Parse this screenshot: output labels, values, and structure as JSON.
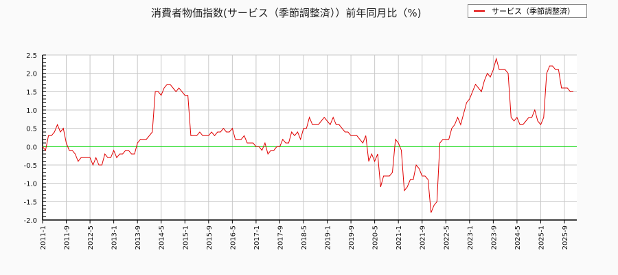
{
  "chart_data": {
    "type": "line",
    "title": "消費者物価指数(サービス（季節調整済））前年同月比（%)",
    "xlabel": "",
    "ylabel": "",
    "ylim": [
      -2.0,
      2.5
    ],
    "yticks": [
      "2.5",
      "2.0",
      "1.5",
      "1.0",
      "0.5",
      "0.0",
      "-0.5",
      "-1.0",
      "-1.5",
      "-2.0"
    ],
    "xticks": [
      "2011-1",
      "2011-9",
      "2012-5",
      "2013-1",
      "2013-9",
      "2014-5",
      "2015-1",
      "2015-9",
      "2016-5",
      "2017-1",
      "2017-9",
      "2018-5",
      "2019-1",
      "2019-9",
      "2020-5",
      "2021-1",
      "2021-9",
      "2022-5",
      "2023-1",
      "2023-9",
      "2024-5",
      "2025-1",
      "2025-9"
    ],
    "grid": true,
    "legend_position": "top-right",
    "reference_line": {
      "y": 0,
      "color": "#00dd00"
    },
    "x_start": "2011-1",
    "series": [
      {
        "name": "サービス（季節調整済）",
        "color": "#e00000",
        "values": [
          0.0,
          -0.1,
          0.3,
          0.3,
          0.4,
          0.6,
          0.4,
          0.5,
          0.1,
          -0.1,
          -0.1,
          -0.2,
          -0.4,
          -0.3,
          -0.3,
          -0.3,
          -0.3,
          -0.5,
          -0.3,
          -0.5,
          -0.5,
          -0.2,
          -0.3,
          -0.3,
          -0.1,
          -0.3,
          -0.2,
          -0.2,
          -0.1,
          -0.1,
          -0.2,
          -0.2,
          0.1,
          0.2,
          0.2,
          0.2,
          0.3,
          0.4,
          1.5,
          1.5,
          1.4,
          1.6,
          1.7,
          1.7,
          1.6,
          1.5,
          1.6,
          1.5,
          1.4,
          1.4,
          0.3,
          0.3,
          0.3,
          0.4,
          0.3,
          0.3,
          0.3,
          0.4,
          0.3,
          0.4,
          0.4,
          0.5,
          0.4,
          0.4,
          0.5,
          0.2,
          0.2,
          0.2,
          0.3,
          0.1,
          0.1,
          0.1,
          0.0,
          0.0,
          -0.1,
          0.1,
          -0.2,
          -0.1,
          -0.1,
          0.0,
          0.0,
          0.2,
          0.1,
          0.1,
          0.4,
          0.3,
          0.4,
          0.2,
          0.5,
          0.5,
          0.8,
          0.6,
          0.6,
          0.6,
          0.7,
          0.8,
          0.7,
          0.6,
          0.8,
          0.6,
          0.6,
          0.5,
          0.4,
          0.4,
          0.3,
          0.3,
          0.3,
          0.2,
          0.1,
          0.3,
          -0.4,
          -0.2,
          -0.4,
          -0.2,
          -1.1,
          -0.8,
          -0.8,
          -0.8,
          -0.7,
          0.2,
          0.1,
          -0.1,
          -1.2,
          -1.1,
          -0.9,
          -0.9,
          -0.5,
          -0.6,
          -0.8,
          -0.8,
          -0.9,
          -1.8,
          -1.6,
          -1.5,
          0.1,
          0.2,
          0.2,
          0.2,
          0.5,
          0.6,
          0.8,
          0.6,
          0.9,
          1.2,
          1.3,
          1.5,
          1.7,
          1.6,
          1.5,
          1.8,
          2.0,
          1.9,
          2.1,
          2.4,
          2.1,
          2.1,
          2.1,
          2.0,
          0.8,
          0.7,
          0.8,
          0.6,
          0.6,
          0.7,
          0.8,
          0.8,
          1.0,
          0.7,
          0.6,
          0.8,
          2.0,
          2.2,
          2.2,
          2.1,
          2.1,
          1.6,
          1.6,
          1.6,
          1.5,
          1.5
        ]
      }
    ]
  },
  "legend": {
    "label": "サービス（季節調整済）"
  }
}
